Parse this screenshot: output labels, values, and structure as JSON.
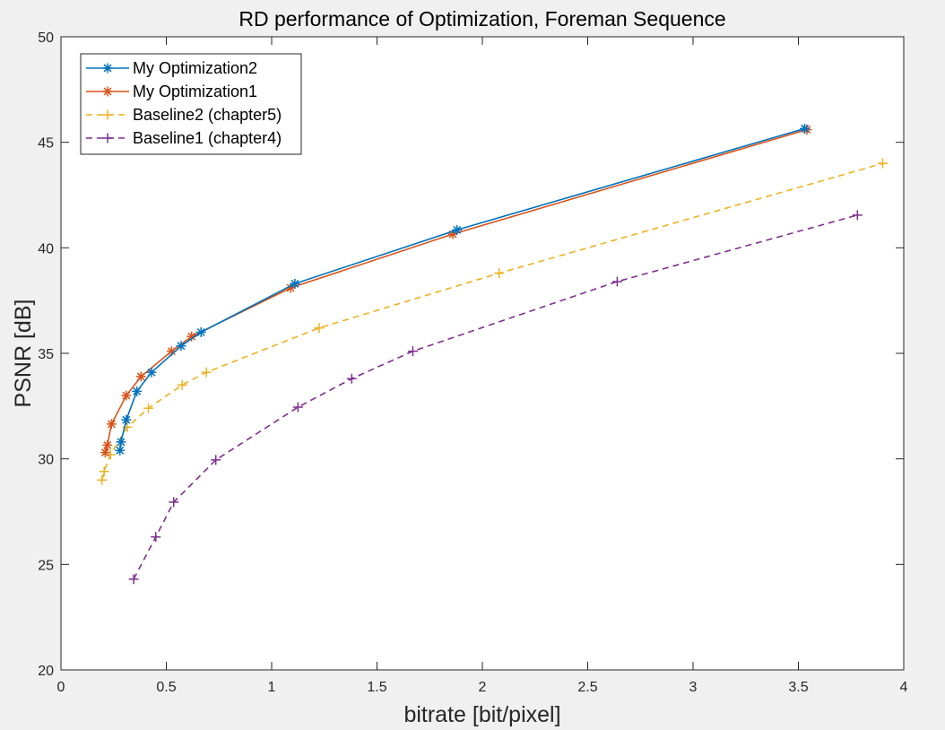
{
  "window": {
    "background": "#f0f0f0"
  },
  "chart_data": {
    "type": "line",
    "title": "RD performance of Optimization, Foreman Sequence",
    "xlabel": "bitrate [bit/pixel]",
    "ylabel": "PSNR [dB]",
    "xlim": [
      0,
      4
    ],
    "ylim": [
      20,
      50
    ],
    "xticks": [
      0,
      0.5,
      1,
      1.5,
      2,
      2.5,
      3,
      3.5,
      4
    ],
    "xtick_labels": [
      "0",
      "0.5",
      "1",
      "1.5",
      "2",
      "2.5",
      "3",
      "3.5",
      "4"
    ],
    "yticks": [
      20,
      25,
      30,
      35,
      40,
      45,
      50
    ],
    "ytick_labels": [
      "20",
      "25",
      "30",
      "35",
      "40",
      "45",
      "50"
    ],
    "grid": false,
    "legend_position": "top-left",
    "series": [
      {
        "name": "My Optimization2",
        "color": "#0072bd",
        "line_style": "solid",
        "marker": "asterisk",
        "x": [
          0.28,
          0.285,
          0.31,
          0.36,
          0.43,
          0.57,
          0.665,
          1.11,
          1.88,
          3.53
        ],
        "y": [
          30.4,
          30.8,
          31.85,
          33.2,
          34.1,
          35.35,
          36.0,
          38.3,
          40.85,
          45.65
        ]
      },
      {
        "name": "My Optimization1",
        "color": "#d95319",
        "line_style": "solid",
        "marker": "asterisk",
        "x": [
          0.21,
          0.22,
          0.24,
          0.31,
          0.38,
          0.525,
          0.62,
          1.09,
          1.86,
          3.54
        ],
        "y": [
          30.3,
          30.65,
          31.65,
          33.0,
          33.9,
          35.1,
          35.8,
          38.1,
          40.65,
          45.6
        ]
      },
      {
        "name": "Baseline2 (chapter5)",
        "color": "#edb120",
        "line_style": "dashed",
        "marker": "plus",
        "x": [
          0.195,
          0.205,
          0.235,
          0.315,
          0.415,
          0.575,
          0.69,
          1.225,
          2.08,
          3.9
        ],
        "y": [
          29.0,
          29.4,
          30.2,
          31.5,
          32.4,
          33.5,
          34.1,
          36.2,
          38.8,
          44.0
        ]
      },
      {
        "name": "Baseline1 (chapter4)",
        "color": "#7e2f8e",
        "line_style": "dashed",
        "marker": "plus",
        "x": [
          0.345,
          0.45,
          0.535,
          0.735,
          1.125,
          1.38,
          1.67,
          2.64,
          3.78
        ],
        "y": [
          24.3,
          26.3,
          27.95,
          29.95,
          32.45,
          33.8,
          35.1,
          38.4,
          41.55
        ]
      }
    ]
  }
}
